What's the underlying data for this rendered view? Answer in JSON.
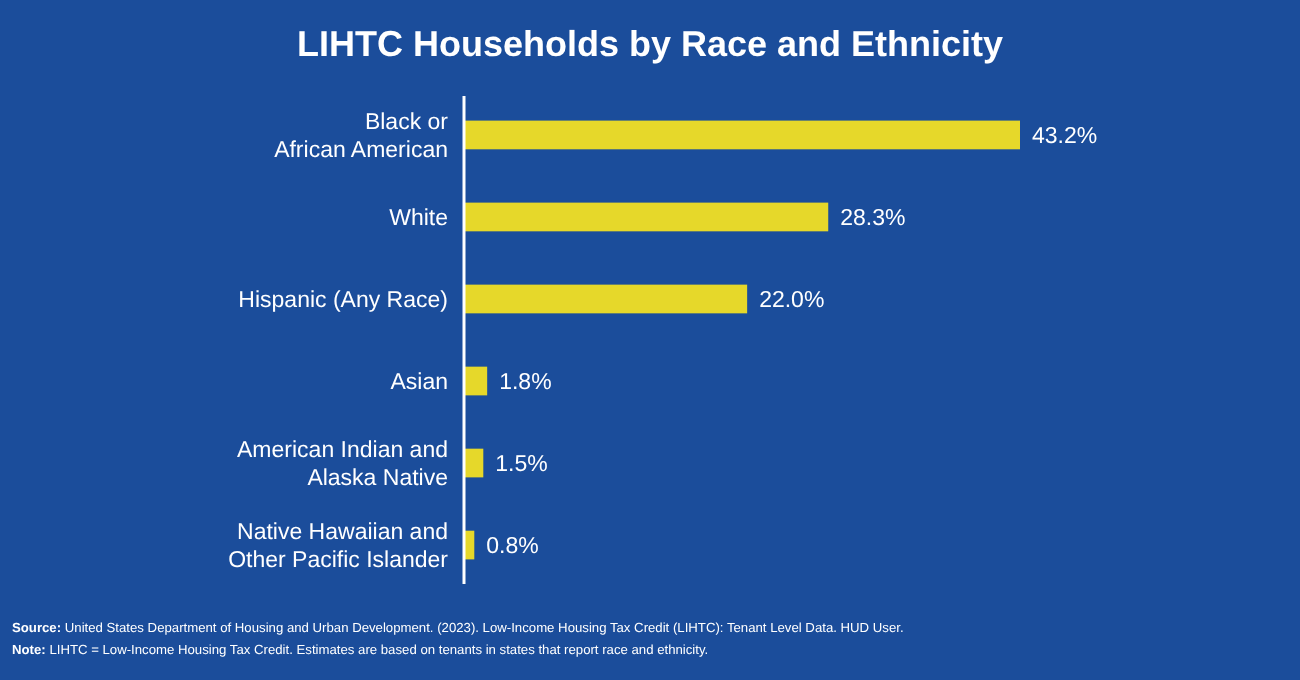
{
  "chart_data": {
    "type": "bar",
    "orientation": "horizontal",
    "title": "LIHTC Households by Race and Ethnicity",
    "categories": [
      "Black or\nAfrican American",
      "White",
      "Hispanic (Any Race)",
      "Asian",
      "American Indian and\nAlaska Native",
      "Native Hawaiian and\nOther Pacific Islander"
    ],
    "values": [
      43.2,
      28.3,
      22.0,
      1.8,
      1.5,
      0.8
    ],
    "value_labels": [
      "43.2%",
      "28.3%",
      "22.0%",
      "1.8%",
      "1.5%",
      "0.8%"
    ],
    "color": "#e6d82a",
    "annotations": [
      "Source: United States Department of Housing and Urban Development. (2023). Low-Income Housing Tax Credit (LIHTC): Tenant Level Data. HUD User.",
      "Note: LIHTC = Low-Income Housing Tax Credit. Estimates are based on tenants in states that report race and ethnicity."
    ]
  }
}
